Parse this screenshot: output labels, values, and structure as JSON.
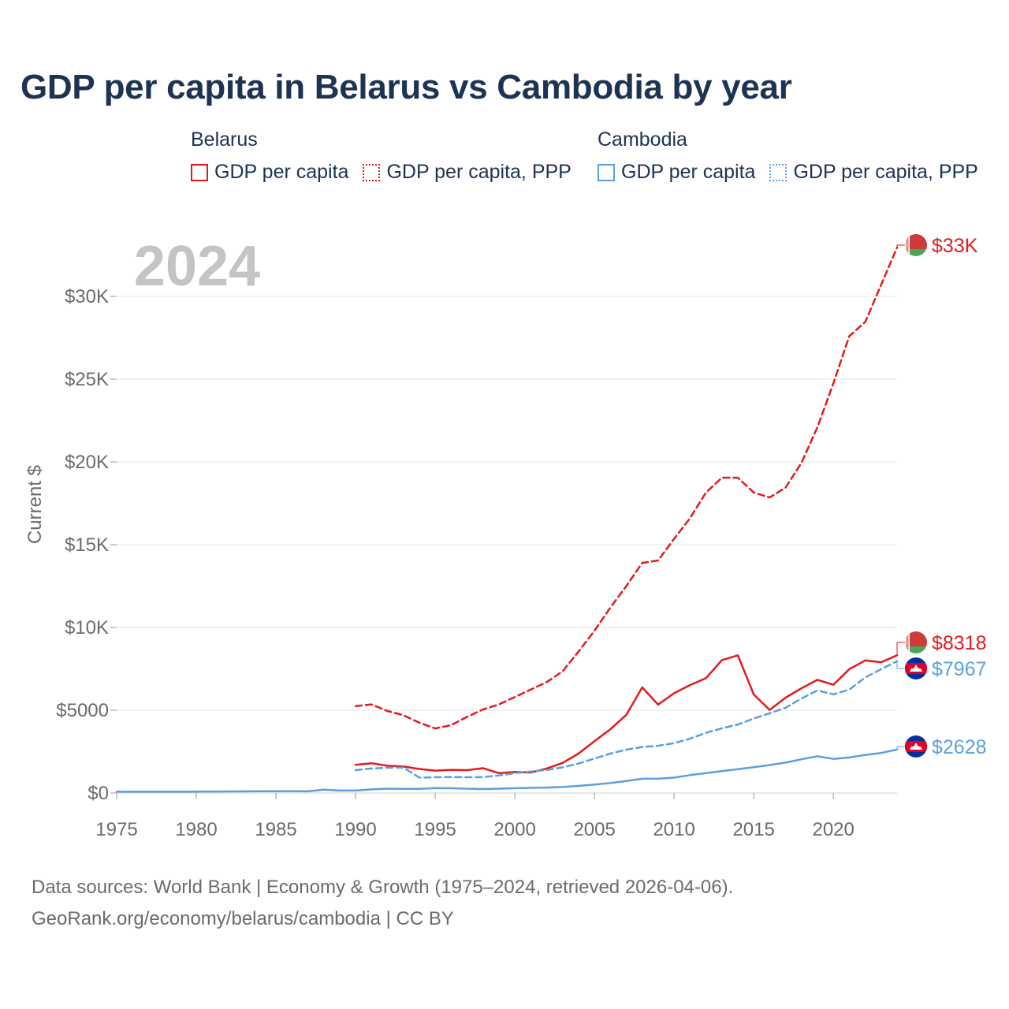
{
  "title": "GDP per capita in Belarus vs Cambodia by year",
  "legend": {
    "groups": [
      {
        "country": "Belarus",
        "items": [
          {
            "label": "GDP per capita",
            "style": "solid",
            "color": "#e41a1c"
          },
          {
            "label": "GDP per capita, PPP",
            "style": "dotted",
            "color": "#e41a1c"
          }
        ]
      },
      {
        "country": "Cambodia",
        "items": [
          {
            "label": "GDP per capita",
            "style": "solid",
            "color": "#5aa0e0"
          },
          {
            "label": "GDP per capita, PPP",
            "style": "dotted",
            "color": "#5aa0e0"
          }
        ]
      }
    ]
  },
  "year_label": "2024",
  "source_lines": [
    "Data sources: World Bank | Economy & Growth (1975–2024, retrieved 2026-04-06).",
    "GeoRank.org/economy/belarus/cambodia | CC BY"
  ],
  "chart_data": {
    "type": "line",
    "title": "GDP per capita in Belarus vs Cambodia by year",
    "xlabel": "",
    "ylabel": "Current $",
    "xlim": [
      1975,
      2024
    ],
    "ylim": [
      0,
      33000
    ],
    "grid": true,
    "x_ticks": [
      1975,
      1980,
      1985,
      1990,
      1995,
      2000,
      2005,
      2010,
      2015,
      2020
    ],
    "x_tick_labels": [
      "1975",
      "1980",
      "1985",
      "1990",
      "1995",
      "2000",
      "2005",
      "2010",
      "2015",
      "2020"
    ],
    "y_ticks": [
      0,
      5000,
      10000,
      15000,
      20000,
      25000,
      30000
    ],
    "y_tick_labels": [
      "$0",
      "$5000",
      "$10K",
      "$15K",
      "$20K",
      "$25K",
      "$30K"
    ],
    "series": [
      {
        "name": "Belarus GDP per capita, PPP",
        "country": "Belarus",
        "color": "#e41a1c",
        "dash": "dashed",
        "end_label": "$33K",
        "flag": "belarus",
        "x": [
          1990,
          1991,
          1992,
          1993,
          1994,
          1995,
          1996,
          1997,
          1998,
          1999,
          2000,
          2001,
          2002,
          2003,
          2004,
          2005,
          2006,
          2007,
          2008,
          2009,
          2010,
          2011,
          2012,
          2013,
          2014,
          2015,
          2016,
          2017,
          2018,
          2019,
          2020,
          2021,
          2022,
          2023,
          2024
        ],
        "values": [
          5250,
          5350,
          4950,
          4700,
          4250,
          3900,
          4100,
          4600,
          5050,
          5350,
          5800,
          6250,
          6700,
          7350,
          8550,
          9800,
          11200,
          12500,
          13900,
          14050,
          15350,
          16600,
          18150,
          19050,
          19050,
          18150,
          17850,
          18450,
          19950,
          22100,
          24750,
          27600,
          28450,
          30700,
          32950
        ]
      },
      {
        "name": "Belarus GDP per capita",
        "country": "Belarus",
        "color": "#e41a1c",
        "dash": "solid",
        "end_label": "$8318",
        "flag": "belarus",
        "x": [
          1990,
          1991,
          1992,
          1993,
          1994,
          1995,
          1996,
          1997,
          1998,
          1999,
          2000,
          2001,
          2002,
          2003,
          2004,
          2005,
          2006,
          2007,
          2008,
          2009,
          2010,
          2011,
          2012,
          2013,
          2014,
          2015,
          2016,
          2017,
          2018,
          2019,
          2020,
          2021,
          2022,
          2023,
          2024
        ],
        "values": [
          1700,
          1800,
          1650,
          1600,
          1450,
          1350,
          1400,
          1380,
          1500,
          1200,
          1270,
          1240,
          1480,
          1820,
          2380,
          3130,
          3850,
          4720,
          6380,
          5340,
          6030,
          6520,
          6940,
          8030,
          8320,
          5950,
          5020,
          5760,
          6330,
          6840,
          6540,
          7480,
          8010,
          7900,
          8318
        ]
      },
      {
        "name": "Cambodia GDP per capita, PPP",
        "country": "Cambodia",
        "color": "#5aa0e0",
        "dash": "dashed",
        "end_label": "$7967",
        "flag": "cambodia",
        "x": [
          1990,
          1991,
          1992,
          1993,
          1994,
          1995,
          1996,
          1997,
          1998,
          1999,
          2000,
          2001,
          2002,
          2003,
          2004,
          2005,
          2006,
          2007,
          2008,
          2009,
          2010,
          2011,
          2012,
          2013,
          2014,
          2015,
          2016,
          2017,
          2018,
          2019,
          2020,
          2021,
          2022,
          2023,
          2024
        ],
        "values": [
          1380,
          1480,
          1530,
          1540,
          930,
          950,
          960,
          950,
          960,
          1060,
          1200,
          1300,
          1390,
          1550,
          1780,
          2080,
          2380,
          2620,
          2780,
          2850,
          3010,
          3280,
          3640,
          3910,
          4140,
          4500,
          4820,
          5150,
          5710,
          6200,
          5960,
          6250,
          6980,
          7480,
          7967
        ]
      },
      {
        "name": "Cambodia GDP per capita",
        "country": "Cambodia",
        "color": "#5aa0e0",
        "dash": "solid",
        "end_label": "$2628",
        "flag": "cambodia",
        "x": [
          1975,
          1976,
          1977,
          1978,
          1979,
          1980,
          1981,
          1982,
          1983,
          1984,
          1985,
          1986,
          1987,
          1988,
          1989,
          1990,
          1991,
          1992,
          1993,
          1994,
          1995,
          1996,
          1997,
          1998,
          1999,
          2000,
          2001,
          2002,
          2003,
          2004,
          2005,
          2006,
          2007,
          2008,
          2009,
          2010,
          2011,
          2012,
          2013,
          2014,
          2015,
          2016,
          2017,
          2018,
          2019,
          2020,
          2021,
          2022,
          2023,
          2024
        ],
        "values": [
          80,
          80,
          80,
          85,
          85,
          85,
          90,
          95,
          100,
          105,
          110,
          115,
          100,
          200,
          150,
          150,
          220,
          260,
          250,
          250,
          300,
          290,
          260,
          240,
          260,
          290,
          310,
          330,
          360,
          430,
          510,
          600,
          730,
          860,
          860,
          930,
          1080,
          1200,
          1320,
          1440,
          1560,
          1690,
          1840,
          2040,
          2220,
          2060,
          2150,
          2300,
          2420,
          2628
        ]
      }
    ]
  }
}
